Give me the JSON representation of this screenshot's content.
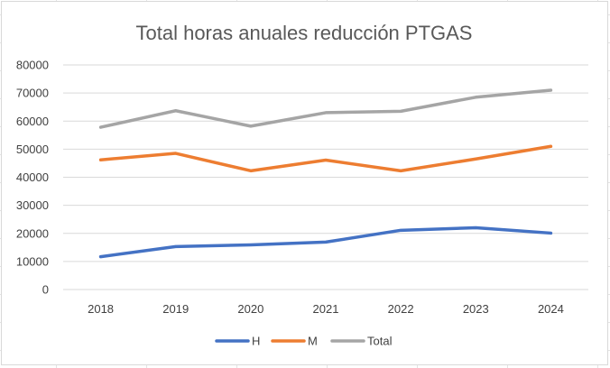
{
  "chart_data": {
    "type": "line",
    "title": "Total horas anuales reducción PTGAS",
    "xlabel": "",
    "ylabel": "",
    "categories": [
      "2018",
      "2019",
      "2020",
      "2021",
      "2022",
      "2023",
      "2024"
    ],
    "ylim": [
      0,
      80000
    ],
    "yticks": [
      0,
      10000,
      20000,
      30000,
      40000,
      50000,
      60000,
      70000,
      80000
    ],
    "grid": true,
    "legend_position": "bottom",
    "series": [
      {
        "name": "H",
        "color": "#4472C4",
        "values": [
          11700,
          15300,
          15900,
          16900,
          21100,
          22000,
          20100
        ]
      },
      {
        "name": "M",
        "color": "#ED7D31",
        "values": [
          46200,
          48500,
          42300,
          46100,
          42300,
          46500,
          51000
        ]
      },
      {
        "name": "Total",
        "color": "#A5A5A5",
        "values": [
          57800,
          63700,
          58200,
          63000,
          63500,
          68500,
          71000
        ]
      }
    ]
  }
}
